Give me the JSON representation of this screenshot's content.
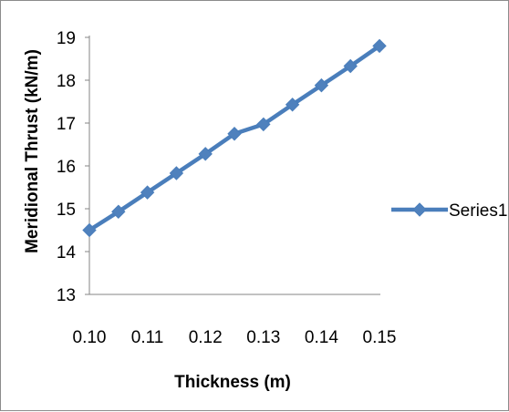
{
  "chart_data": {
    "type": "line",
    "x": [
      0.1,
      0.105,
      0.11,
      0.115,
      0.12,
      0.125,
      0.13,
      0.135,
      0.14,
      0.145,
      0.15
    ],
    "series": [
      {
        "name": "Series1",
        "values": [
          14.5,
          14.93,
          15.38,
          15.83,
          16.28,
          16.75,
          16.97,
          17.43,
          17.88,
          18.33,
          18.8
        ]
      }
    ],
    "xlabel": "Thickness (m)",
    "ylabel": "Meridional Thrust (kN/m)",
    "xlim": [
      0.1,
      0.15
    ],
    "ylim": [
      13,
      19
    ],
    "xticks": [
      "0.10",
      "0.11",
      "0.12",
      "0.13",
      "0.14",
      "0.15"
    ],
    "yticks": [
      "13",
      "14",
      "15",
      "16",
      "17",
      "18",
      "19"
    ],
    "grid": false,
    "legend_position": "right",
    "colors": {
      "series1": "#4a7ebb",
      "marker": "#4f81bd",
      "axis": "#868686"
    }
  }
}
